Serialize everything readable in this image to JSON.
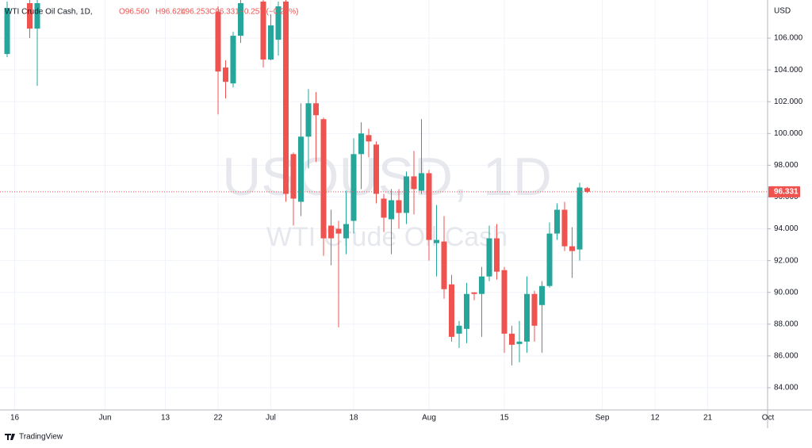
{
  "chart_data": {
    "type": "candlestick",
    "legend_values": {
      "symbol": "WTI Crude Oil Cash, 1D,",
      "open": "O96.560",
      "high": "H96.624",
      "low": "L96.253",
      "close": "C96.331",
      "change": "−0.257 (−0.27%)"
    },
    "watermark": {
      "title": "USOUSD, 1D",
      "subtitle": "WTI Crude Oil Cash"
    },
    "currency": "USD",
    "brand": "TradingView",
    "up_color": "#26a69a",
    "down_color": "#ef5350",
    "grid": true,
    "ylim": [
      82.6,
      108.4
    ],
    "yticks": [
      {
        "value": 84,
        "label": "84.000"
      },
      {
        "value": 86,
        "label": "86.000"
      },
      {
        "value": 88,
        "label": "88.000"
      },
      {
        "value": 90,
        "label": "90.000"
      },
      {
        "value": 92,
        "label": "92.000"
      },
      {
        "value": 94,
        "label": "94.000"
      },
      {
        "value": 96,
        "label": "96.000"
      },
      {
        "value": 98,
        "label": "98.000"
      },
      {
        "value": 100,
        "label": "100.000"
      },
      {
        "value": 102,
        "label": "102.000"
      },
      {
        "value": 104,
        "label": "104.000"
      },
      {
        "value": 106,
        "label": "106.000"
      }
    ],
    "last_price": {
      "value": 96.331,
      "label": "96.331"
    },
    "categories": [
      null,
      "16",
      null,
      null,
      null,
      null,
      null,
      null,
      null,
      null,
      null,
      null,
      null,
      "Jun",
      null,
      null,
      null,
      null,
      null,
      null,
      null,
      "13",
      null,
      null,
      null,
      null,
      null,
      null,
      "22",
      null,
      null,
      null,
      null,
      null,
      null,
      "Jul",
      null,
      null,
      null,
      null,
      null,
      null,
      null,
      null,
      null,
      null,
      "18",
      null,
      null,
      null,
      null,
      null,
      null,
      null,
      null,
      null,
      "Aug",
      null,
      null,
      null,
      null,
      null,
      null,
      null,
      null,
      null,
      "15",
      null,
      null,
      null,
      null,
      null,
      null,
      null,
      null,
      null,
      null,
      null,
      null,
      "Sep",
      null,
      null,
      null,
      null,
      null,
      null,
      "12",
      null,
      null,
      null,
      null,
      null,
      null,
      "21",
      null,
      null,
      null,
      null,
      null,
      null,
      null,
      "Oct"
    ],
    "open": [
      105.0,
      null,
      null,
      108.2,
      106.6,
      null,
      null,
      null,
      null,
      null,
      null,
      null,
      null,
      null,
      null,
      null,
      null,
      null,
      null,
      null,
      null,
      null,
      null,
      null,
      null,
      null,
      null,
      null,
      107.65,
      104.15,
      103.15,
      106.15,
      null,
      null,
      108.3,
      104.65,
      105.9,
      108.3,
      98.7,
      95.7,
      99.8,
      101.9,
      100.9,
      94.2,
      94.0,
      93.4,
      94.5,
      98.7,
      99.9,
      99.3,
      95.9,
      94.6,
      95.8,
      95.0,
      97.3,
      96.4,
      97.5,
      93.1,
      93.2,
      90.5,
      87.4,
      87.7,
      90.0,
      89.9,
      91.0,
      93.4,
      91.4,
      87.4,
      86.75,
      86.9,
      89.9,
      89.2,
      90.4,
      93.7,
      95.2,
      92.9,
      92.7,
      96.56,
      null,
      null,
      null,
      null,
      null,
      null,
      null,
      null,
      null,
      null,
      null,
      null,
      null,
      null,
      null,
      null,
      null,
      null,
      null,
      null,
      null,
      null,
      null,
      null
    ],
    "high": [
      108.3,
      null,
      null,
      108.4,
      108.4,
      null,
      null,
      null,
      null,
      null,
      null,
      null,
      null,
      null,
      null,
      null,
      null,
      null,
      null,
      null,
      null,
      null,
      null,
      null,
      null,
      null,
      null,
      null,
      108.0,
      104.6,
      106.4,
      108.4,
      null,
      null,
      108.4,
      107.5,
      108.3,
      108.4,
      98.8,
      101.9,
      102.8,
      102.6,
      101.0,
      95.2,
      94.5,
      96.4,
      99.7,
      100.7,
      100.3,
      99.5,
      96.2,
      96.5,
      96.5,
      97.6,
      98.9,
      100.9,
      97.7,
      95.5,
      94.8,
      91.1,
      88.2,
      90.6,
      90.0,
      91.6,
      94.2,
      94.3,
      91.6,
      87.9,
      88.2,
      91.0,
      90.1,
      90.7,
      94.4,
      95.6,
      95.7,
      94.1,
      96.9,
      96.624,
      null,
      null,
      null,
      null,
      null,
      null,
      null,
      null,
      null,
      null,
      null,
      null,
      null,
      null,
      null,
      null,
      null,
      null,
      null,
      null,
      null,
      null,
      null,
      null
    ],
    "low": [
      104.8,
      null,
      null,
      106.0,
      103.0,
      null,
      null,
      null,
      null,
      null,
      null,
      null,
      null,
      null,
      null,
      null,
      null,
      null,
      null,
      null,
      null,
      null,
      null,
      null,
      null,
      null,
      null,
      null,
      101.2,
      102.2,
      102.9,
      105.7,
      null,
      null,
      104.15,
      104.6,
      104.9,
      95.7,
      94.2,
      94.8,
      97.8,
      98.2,
      92.3,
      91.7,
      87.8,
      92.4,
      93.7,
      96.5,
      98.5,
      95.6,
      93.8,
      92.4,
      94.0,
      94.3,
      94.9,
      96.2,
      92.0,
      91.0,
      89.6,
      86.9,
      86.5,
      86.8,
      89.5,
      87.2,
      90.7,
      90.8,
      86.2,
      85.4,
      85.6,
      86.2,
      86.9,
      86.2,
      90.3,
      93.3,
      92.6,
      90.9,
      92.0,
      96.253,
      null,
      null,
      null,
      null,
      null,
      null,
      null,
      null,
      null,
      null,
      null,
      null,
      null,
      null,
      null,
      null,
      null,
      null,
      null,
      null,
      null,
      null,
      null,
      null
    ],
    "close": [
      107.9,
      null,
      null,
      106.6,
      108.2,
      null,
      null,
      null,
      null,
      null,
      null,
      null,
      null,
      null,
      null,
      null,
      null,
      null,
      null,
      null,
      null,
      null,
      null,
      null,
      null,
      null,
      null,
      null,
      103.9,
      103.25,
      106.15,
      108.2,
      null,
      null,
      104.65,
      106.8,
      108.0,
      96.2,
      95.9,
      99.8,
      101.9,
      101.15,
      93.4,
      93.4,
      93.7,
      94.3,
      98.7,
      100.0,
      99.5,
      96.2,
      94.7,
      95.8,
      95.0,
      97.3,
      96.5,
      97.5,
      93.3,
      93.3,
      90.2,
      87.2,
      87.9,
      89.9,
      89.9,
      91.0,
      93.4,
      91.3,
      87.4,
      86.7,
      86.9,
      89.9,
      87.9,
      90.4,
      93.7,
      95.2,
      92.9,
      92.6,
      96.6,
      96.331,
      null,
      null,
      null,
      null,
      null,
      null,
      null,
      null,
      null,
      null,
      null,
      null,
      null,
      null,
      null,
      null,
      null,
      null,
      null,
      null,
      null,
      null,
      null,
      null
    ]
  }
}
